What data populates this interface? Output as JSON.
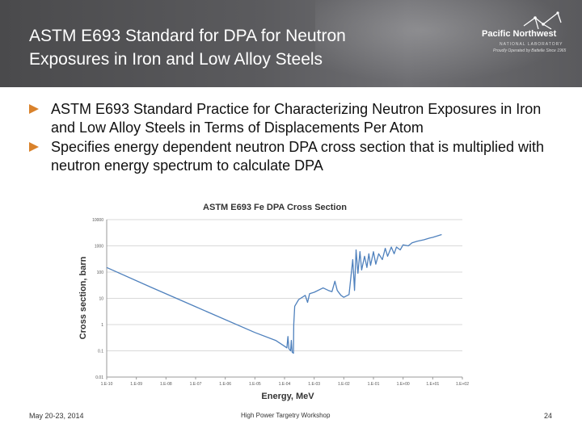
{
  "slide": {
    "title_line1": "ASTM E693 Standard for DPA for Neutron",
    "title_line2": "Exposures in Iron and Low Alloy Steels"
  },
  "logo": {
    "name": "Pacific Northwest",
    "subtitle": "NATIONAL LABORATORY",
    "tagline": "Proudly Operated by Battelle Since 1965"
  },
  "bullets": [
    "ASTM E693 Standard Practice for Characterizing Neutron Exposures in Iron and Low Alloy Steels in Terms of Displacements Per Atom",
    "Specifies energy dependent neutron DPA cross section that is multiplied with neutron energy spectrum to calculate DPA"
  ],
  "footer": {
    "date": "May 20-23, 2014",
    "event": "High Power Targetry Workshop",
    "page": "24"
  },
  "colors": {
    "header_bg": "#55555a",
    "bullet_arrow": "#d9822b",
    "series_line": "#4f81bd",
    "grid": "#d9d9d9"
  },
  "chart_data": {
    "type": "line",
    "title": "ASTM E693 Fe DPA Cross Section",
    "xlabel": "Energy, MeV",
    "ylabel": "Cross section, barn",
    "x_scale": "log",
    "y_scale": "log",
    "xlim": [
      1e-10,
      100.0
    ],
    "ylim": [
      0.01,
      10000
    ],
    "x_tick_labels": [
      "1.E-10",
      "1.E-09",
      "1.E-08",
      "1.E-07",
      "1.E-06",
      "1.E-05",
      "1.E-04",
      "1.E-03",
      "1.E-02",
      "1.E-01",
      "1.E+00",
      "1.E+01",
      "1.E+02"
    ],
    "y_tick_labels": [
      "0.01",
      "0.1",
      "1",
      "10",
      "100",
      "1000",
      "10000"
    ],
    "grid": "horizontal",
    "series": [
      {
        "points": [
          [
            1e-10,
            150
          ],
          [
            3e-09,
            27
          ],
          [
            1e-07,
            4.8
          ],
          [
            1e-05,
            0.5
          ],
          [
            5e-05,
            0.25
          ],
          [
            0.0001,
            0.15
          ],
          [
            0.00012,
            0.13
          ],
          [
            0.00013,
            0.35
          ],
          [
            0.00014,
            0.12
          ],
          [
            0.00016,
            0.1
          ],
          [
            0.00017,
            0.25
          ],
          [
            0.00018,
            0.09
          ],
          [
            0.0002,
            0.08
          ],
          [
            0.000205,
            1.0
          ],
          [
            0.00022,
            5
          ],
          [
            0.0003,
            9
          ],
          [
            0.0005,
            13
          ],
          [
            0.0006,
            7
          ],
          [
            0.0007,
            15
          ],
          [
            0.001,
            17
          ],
          [
            0.002,
            25
          ],
          [
            0.003,
            20
          ],
          [
            0.004,
            18
          ],
          [
            0.005,
            45
          ],
          [
            0.006,
            20
          ],
          [
            0.008,
            13
          ],
          [
            0.01,
            11
          ],
          [
            0.015,
            14
          ],
          [
            0.02,
            300
          ],
          [
            0.023,
            20
          ],
          [
            0.026,
            700
          ],
          [
            0.03,
            90
          ],
          [
            0.035,
            600
          ],
          [
            0.04,
            120
          ],
          [
            0.05,
            400
          ],
          [
            0.06,
            150
          ],
          [
            0.07,
            500
          ],
          [
            0.08,
            180
          ],
          [
            0.1,
            600
          ],
          [
            0.12,
            200
          ],
          [
            0.15,
            500
          ],
          [
            0.2,
            300
          ],
          [
            0.25,
            800
          ],
          [
            0.3,
            400
          ],
          [
            0.4,
            900
          ],
          [
            0.5,
            500
          ],
          [
            0.6,
            900
          ],
          [
            0.8,
            700
          ],
          [
            1,
            1100
          ],
          [
            1.5,
            1000
          ],
          [
            2,
            1300
          ],
          [
            3,
            1500
          ],
          [
            5,
            1700
          ],
          [
            8,
            2000
          ],
          [
            10,
            2100
          ],
          [
            20,
            2700
          ]
        ]
      }
    ]
  }
}
